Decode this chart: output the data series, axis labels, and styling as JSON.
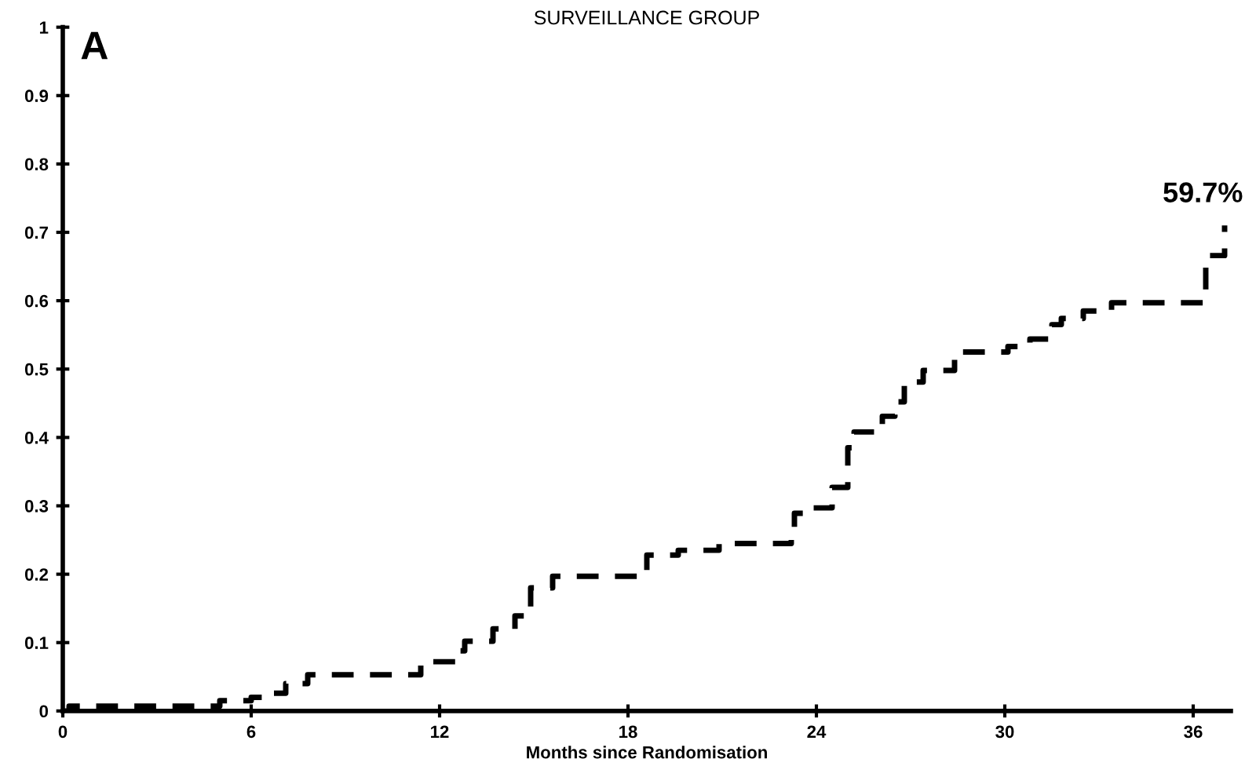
{
  "chart_data": {
    "type": "step",
    "title": "SURVEILLANCE GROUP",
    "xlabel": "Months since Randomisation",
    "annotations": [
      "A",
      {
        "text": "59.7%",
        "x": 37,
        "y": 0.71
      }
    ],
    "x": [
      0,
      0.2,
      5,
      6,
      6.4,
      7.1,
      7.8,
      11.4,
      12.6,
      12.8,
      13.7,
      14.4,
      14.9,
      15.6,
      18.6,
      19.6,
      20.9,
      23.2,
      23.3,
      23.6,
      24.5,
      25.0,
      25.2,
      26.1,
      26.5,
      26.8,
      27.4,
      28.4,
      30.1,
      30.8,
      31.5,
      31.8,
      32.5,
      33.4,
      36.4,
      37.0
    ],
    "values": [
      0,
      0.007,
      0.015,
      0.02,
      0.026,
      0.04,
      0.053,
      0.072,
      0.088,
      0.102,
      0.12,
      0.139,
      0.18,
      0.197,
      0.228,
      0.235,
      0.245,
      0.254,
      0.289,
      0.297,
      0.327,
      0.385,
      0.408,
      0.431,
      0.452,
      0.481,
      0.498,
      0.525,
      0.533,
      0.544,
      0.565,
      0.574,
      0.585,
      0.597,
      0.666,
      0.71
    ],
    "color": "#000000",
    "line_style": "dashed",
    "marker": "none",
    "grid": false,
    "legend": false,
    "xlim": [
      0,
      37.2
    ],
    "ylim": [
      0,
      1
    ],
    "xticks": [
      0,
      6,
      12,
      18,
      24,
      30,
      36
    ],
    "yticks": [
      0,
      0.1,
      0.2,
      0.3,
      0.4,
      0.5,
      0.6,
      0.7,
      0.8,
      0.9,
      1
    ]
  }
}
